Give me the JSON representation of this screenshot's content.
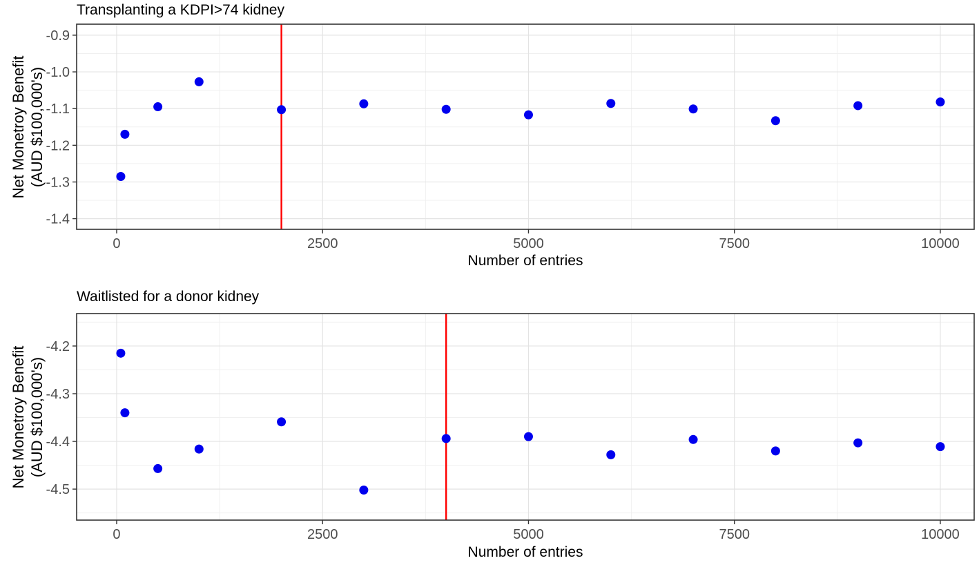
{
  "figure": {
    "background": "#FFFFFF"
  },
  "chart_data": [
    {
      "type": "scatter",
      "title": "Transplanting a KDPI>74 kidney",
      "xlabel": "Number of entries",
      "ylabel": "Net Monetroy Benefit (AUD $100,000's)",
      "ylabel_line1": "Net Monetroy Benefit",
      "ylabel_line2": "(AUD $100,000's)",
      "x": [
        50,
        100,
        500,
        1000,
        2000,
        3000,
        4000,
        5000,
        6000,
        7000,
        8000,
        9000,
        10000
      ],
      "y": [
        -1.285,
        -1.17,
        -1.095,
        -1.027,
        -1.103,
        -1.087,
        -1.102,
        -1.117,
        -1.086,
        -1.101,
        -1.133,
        -1.092,
        -1.082
      ],
      "x_ticks": [
        0,
        2500,
        5000,
        7500,
        10000
      ],
      "x_tick_labels": [
        "0",
        "2500",
        "5000",
        "7500",
        "10000"
      ],
      "y_ticks": [
        -0.9,
        -1.0,
        -1.1,
        -1.2,
        -1.3,
        -1.4
      ],
      "y_tick_labels": [
        "-0.9",
        "-1.0",
        "-1.1",
        "-1.2",
        "-1.3",
        "-1.4"
      ],
      "xlim": [
        -486,
        10411
      ],
      "ylim": [
        -1.429,
        -0.87
      ],
      "vline_x": 2000,
      "point_color": "#0000EE",
      "vline_color": "#FF0000",
      "grid": "major+minor",
      "grid_major_color": "#E3E3E3",
      "grid_minor_color": "#F0F0F0",
      "panel_border_color": "#333333",
      "tick_label_color": "#4D4D4D",
      "legend": "none"
    },
    {
      "type": "scatter",
      "title": "Waitlisted for a donor kidney",
      "xlabel": "Number of entries",
      "ylabel": "Net Monetroy Benefit (AUD $100,000's)",
      "ylabel_line1": "Net Monetroy Benefit",
      "ylabel_line2": "(AUD $100,000's)",
      "x": [
        50,
        100,
        500,
        1000,
        2000,
        3000,
        4000,
        5000,
        6000,
        7000,
        8000,
        9000,
        10000
      ],
      "y": [
        -4.215,
        -4.34,
        -4.457,
        -4.416,
        -4.359,
        -4.502,
        -4.394,
        -4.39,
        -4.428,
        -4.396,
        -4.42,
        -4.403,
        -4.411
      ],
      "x_ticks": [
        0,
        2500,
        5000,
        7500,
        10000
      ],
      "x_tick_labels": [
        "0",
        "2500",
        "5000",
        "7500",
        "10000"
      ],
      "y_ticks": [
        -4.2,
        -4.3,
        -4.4,
        -4.5
      ],
      "y_tick_labels": [
        "-4.2",
        "-4.3",
        "-4.4",
        "-4.5"
      ],
      "xlim": [
        -486,
        10411
      ],
      "ylim": [
        -4.565,
        -4.132
      ],
      "vline_x": 4000,
      "point_color": "#0000EE",
      "vline_color": "#FF0000",
      "grid": "major+minor",
      "grid_major_color": "#E3E3E3",
      "grid_minor_color": "#F0F0F0",
      "panel_border_color": "#333333",
      "tick_label_color": "#4D4D4D",
      "legend": "none"
    }
  ]
}
